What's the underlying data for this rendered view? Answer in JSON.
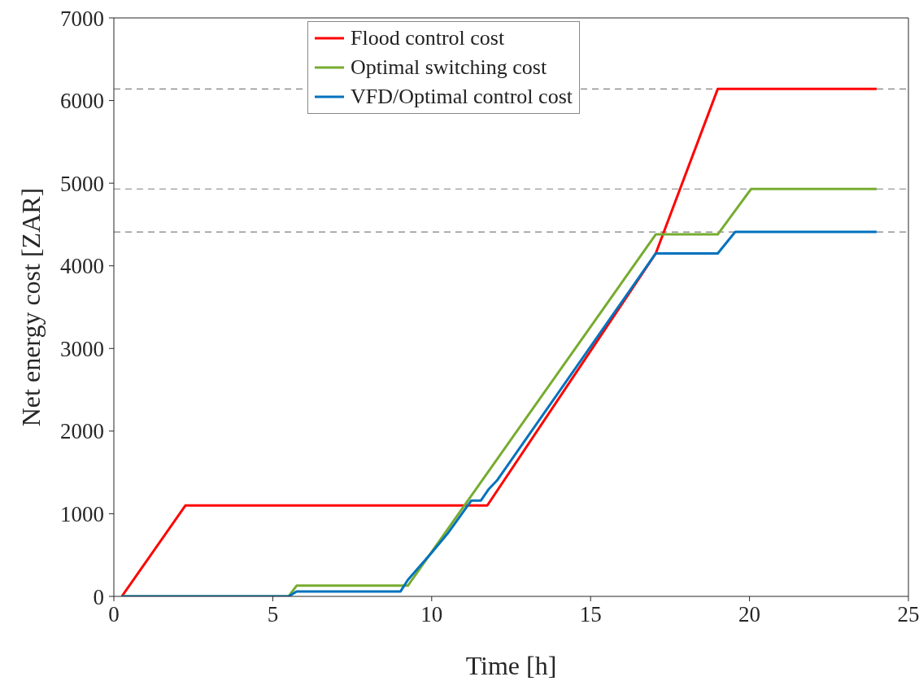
{
  "chart_data": {
    "type": "line",
    "xlabel": "Time [h]",
    "ylabel": "Net energy cost [ZAR]",
    "xlim": [
      0,
      25
    ],
    "xticks": [
      0,
      5,
      10,
      15,
      20,
      25
    ],
    "ylim": [
      0,
      7000
    ],
    "yticks": [
      0,
      1000,
      2000,
      3000,
      4000,
      5000,
      6000,
      7000
    ],
    "grid": false,
    "legend": "top",
    "line_style": "solid",
    "marker": "none",
    "series": [
      {
        "name": "Flood control cost",
        "color": "#ff0000",
        "x": [
          0.25,
          2.25,
          11.75,
          17.05,
          19,
          24
        ],
        "values": [
          0,
          1100,
          1100,
          4150,
          6140,
          6140
        ]
      },
      {
        "name": "Optimal switching cost",
        "color": "#77ac30",
        "x": [
          0.25,
          5.5,
          5.75,
          9.25,
          17.05,
          19,
          20.05,
          24
        ],
        "values": [
          0,
          0,
          130,
          130,
          4380,
          4380,
          4930,
          4930
        ]
      },
      {
        "name": "VFD/Optimal control cost",
        "color": "#0072bd",
        "x": [
          0.25,
          5.5,
          5.75,
          9.02,
          9.25,
          10,
          10.5,
          11.25,
          11.55,
          11.8,
          12.05,
          17.05,
          19,
          19.55,
          24
        ],
        "values": [
          0,
          0,
          60,
          60,
          200,
          530,
          760,
          1160,
          1160,
          1300,
          1400,
          4150,
          4150,
          4410,
          4410
        ]
      }
    ],
    "ref_lines": [
      {
        "axis": "y",
        "value": 6140,
        "color": "#808080",
        "line_style": "dashed"
      },
      {
        "axis": "y",
        "value": 4930,
        "color": "#808080",
        "line_style": "dashed"
      },
      {
        "axis": "y",
        "value": 4410,
        "color": "#808080",
        "line_style": "dashed"
      }
    ]
  }
}
